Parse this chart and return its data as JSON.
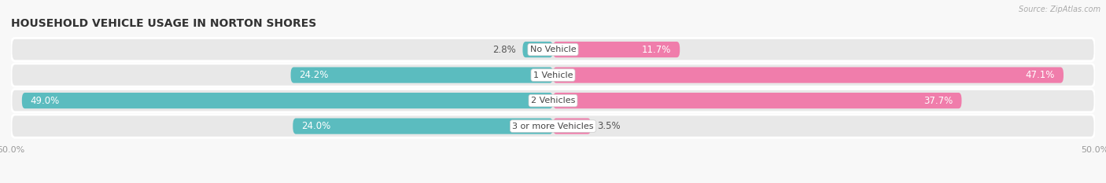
{
  "title": "HOUSEHOLD VEHICLE USAGE IN NORTON SHORES",
  "source": "Source: ZipAtlas.com",
  "categories": [
    "No Vehicle",
    "1 Vehicle",
    "2 Vehicles",
    "3 or more Vehicles"
  ],
  "owner_values": [
    2.8,
    24.2,
    49.0,
    24.0
  ],
  "renter_values": [
    11.7,
    47.1,
    37.7,
    3.5
  ],
  "owner_color": "#5bbcbf",
  "renter_color": "#f07dab",
  "bar_bg_color": "#e8e8e8",
  "row_bg_color": "#f0f0f0",
  "background_color": "#f8f8f8",
  "axis_limit": 50.0,
  "title_fontsize": 10,
  "label_fontsize": 8.5,
  "tick_fontsize": 8,
  "bar_height": 0.62,
  "value_threshold": 8.0
}
